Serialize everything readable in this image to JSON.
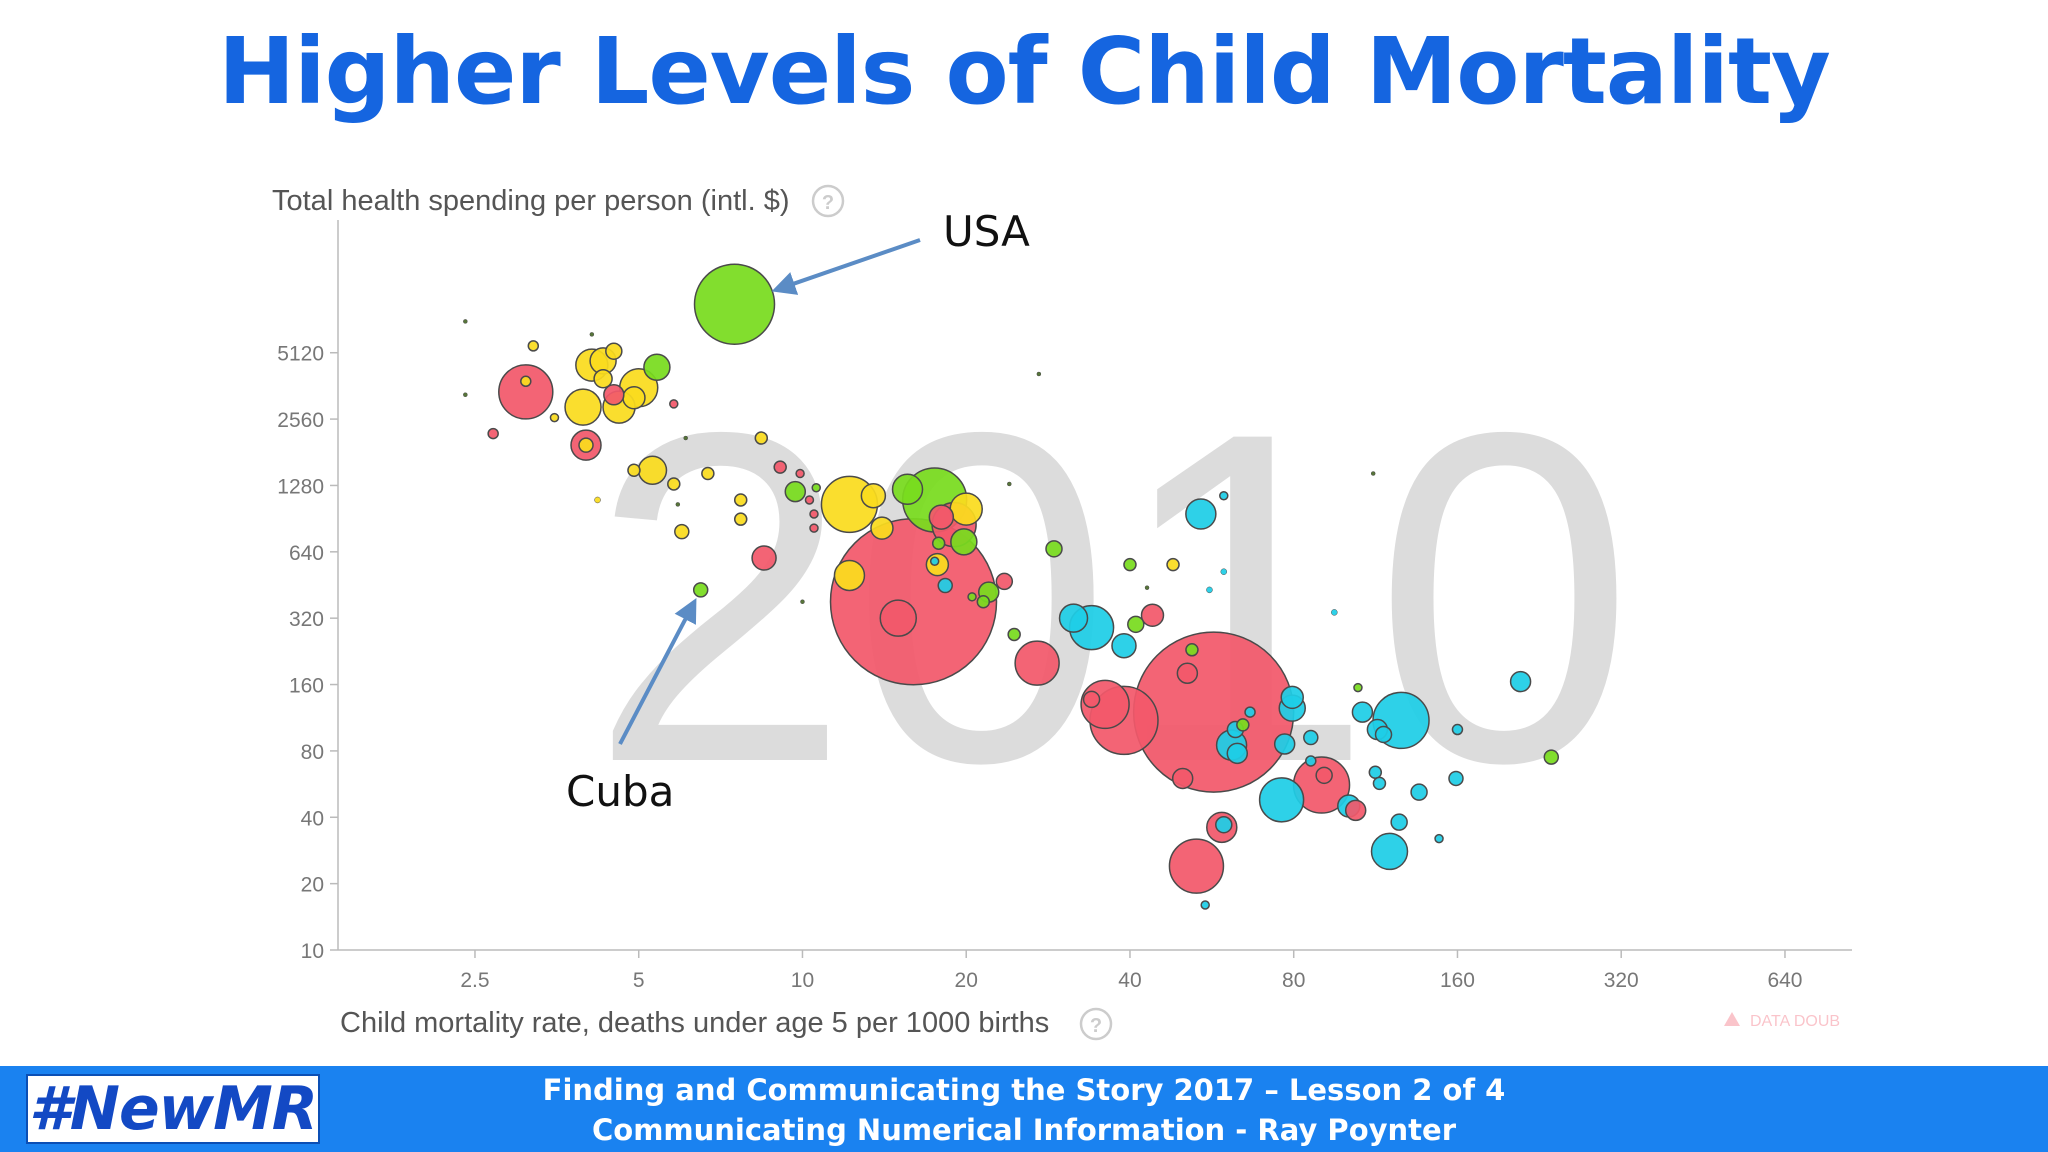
{
  "slide": {
    "title": "Higher Levels of Child Mortality",
    "brand": "#NewMR",
    "footer_line1": "Finding and Communicating the Story 2017 – Lesson 2 of 4",
    "footer_line2": "Communicating Numerical Information - Ray Poynter"
  },
  "colors": {
    "title": "#1565e0",
    "footer": "#1a82f0",
    "red": "#f2586b",
    "yellow": "#fadc1e",
    "green": "#78dc1e",
    "cyan": "#1ecde6",
    "arrow": "#5b8cc5"
  },
  "icons": {
    "help": "question-circle-icon",
    "warning": "warning-triangle-icon"
  },
  "chart_data": {
    "type": "scatter",
    "title": "",
    "year_label": "2010",
    "ylabel": "Total health spending per person (intl. $)",
    "xlabel": "Child mortality rate, deaths under age 5 per 1000 births",
    "x_scale": "log",
    "y_scale": "log",
    "xlim": [
      1.4,
      850
    ],
    "ylim": [
      10,
      20480
    ],
    "x_ticks": [
      "2.5",
      "5",
      "10",
      "20",
      "40",
      "80",
      "160",
      "320",
      "640"
    ],
    "y_ticks": [
      "10",
      "20",
      "40",
      "80",
      "160",
      "320",
      "640",
      "1280",
      "2560",
      "5120"
    ],
    "watermark": "DATA DOUB",
    "annotations": [
      {
        "label": "USA",
        "x": 7.5,
        "y": 8500
      },
      {
        "label": "Cuba",
        "x": 6.5,
        "y": 430
      }
    ],
    "bubbles": [
      {
        "x": 7.5,
        "y": 8500,
        "r": 40,
        "color": "green"
      },
      {
        "x": 6.5,
        "y": 430,
        "r": 7,
        "color": "green"
      },
      {
        "x": 16,
        "y": 380,
        "r": 83,
        "color": "red"
      },
      {
        "x": 57,
        "y": 120,
        "r": 80,
        "color": "red"
      },
      {
        "x": 15,
        "y": 320,
        "r": 18,
        "color": "red"
      },
      {
        "x": 3.1,
        "y": 3400,
        "r": 27,
        "color": "red"
      },
      {
        "x": 4,
        "y": 1950,
        "r": 15,
        "color": "red"
      },
      {
        "x": 4,
        "y": 1950,
        "r": 7,
        "color": "yellow"
      },
      {
        "x": 4.5,
        "y": 3300,
        "r": 10,
        "color": "red"
      },
      {
        "x": 5.8,
        "y": 3000,
        "r": 4,
        "color": "red"
      },
      {
        "x": 2.4,
        "y": 7100,
        "r": 2,
        "color": "darkgreen"
      },
      {
        "x": 2.4,
        "y": 3300,
        "r": 2,
        "color": "darkgreen"
      },
      {
        "x": 2.7,
        "y": 2200,
        "r": 5,
        "color": "red"
      },
      {
        "x": 3.2,
        "y": 5500,
        "r": 5,
        "color": "yellow"
      },
      {
        "x": 3.1,
        "y": 3800,
        "r": 5,
        "color": "yellow"
      },
      {
        "x": 3.5,
        "y": 2600,
        "r": 4,
        "color": "yellow"
      },
      {
        "x": 4.1,
        "y": 4500,
        "r": 16,
        "color": "yellow"
      },
      {
        "x": 4.3,
        "y": 4700,
        "r": 13,
        "color": "yellow"
      },
      {
        "x": 4.5,
        "y": 5200,
        "r": 8,
        "color": "yellow"
      },
      {
        "x": 4.3,
        "y": 3900,
        "r": 9,
        "color": "yellow"
      },
      {
        "x": 3.95,
        "y": 2900,
        "r": 18,
        "color": "yellow"
      },
      {
        "x": 4.6,
        "y": 2900,
        "r": 16,
        "color": "yellow"
      },
      {
        "x": 5,
        "y": 3550,
        "r": 19,
        "color": "yellow"
      },
      {
        "x": 4.9,
        "y": 3200,
        "r": 11,
        "color": "yellow"
      },
      {
        "x": 4.1,
        "y": 6200,
        "r": 2,
        "color": "darkgreen"
      },
      {
        "x": 5.4,
        "y": 4400,
        "r": 13,
        "color": "green"
      },
      {
        "x": 4.2,
        "y": 1100,
        "r": 3,
        "color": "yellow"
      },
      {
        "x": 4.9,
        "y": 1500,
        "r": 6,
        "color": "yellow"
      },
      {
        "x": 5.3,
        "y": 1500,
        "r": 14,
        "color": "yellow"
      },
      {
        "x": 5.8,
        "y": 1300,
        "r": 6,
        "color": "yellow"
      },
      {
        "x": 5.9,
        "y": 1050,
        "r": 2,
        "color": "darkgreen"
      },
      {
        "x": 6.7,
        "y": 1450,
        "r": 6,
        "color": "yellow"
      },
      {
        "x": 6,
        "y": 790,
        "r": 7,
        "color": "yellow"
      },
      {
        "x": 6.1,
        "y": 2100,
        "r": 2,
        "color": "darkgreen"
      },
      {
        "x": 7.7,
        "y": 1100,
        "r": 6,
        "color": "yellow"
      },
      {
        "x": 7.7,
        "y": 900,
        "r": 6,
        "color": "yellow"
      },
      {
        "x": 8.4,
        "y": 2100,
        "r": 6,
        "color": "yellow"
      },
      {
        "x": 8.5,
        "y": 600,
        "r": 12,
        "color": "red"
      },
      {
        "x": 9.1,
        "y": 1550,
        "r": 6,
        "color": "red"
      },
      {
        "x": 9.7,
        "y": 1200,
        "r": 10,
        "color": "green"
      },
      {
        "x": 9.9,
        "y": 1450,
        "r": 4,
        "color": "red"
      },
      {
        "x": 10.3,
        "y": 1100,
        "r": 4,
        "color": "red"
      },
      {
        "x": 10.5,
        "y": 950,
        "r": 4,
        "color": "red"
      },
      {
        "x": 10.5,
        "y": 820,
        "r": 4,
        "color": "red"
      },
      {
        "x": 10.6,
        "y": 1250,
        "r": 4,
        "color": "green"
      },
      {
        "x": 12.2,
        "y": 1050,
        "r": 28,
        "color": "yellow"
      },
      {
        "x": 12.2,
        "y": 500,
        "r": 15,
        "color": "yellow"
      },
      {
        "x": 13.5,
        "y": 1150,
        "r": 12,
        "color": "yellow"
      },
      {
        "x": 14,
        "y": 820,
        "r": 11,
        "color": "yellow"
      },
      {
        "x": 15.6,
        "y": 1230,
        "r": 15,
        "color": "green"
      },
      {
        "x": 17.5,
        "y": 1100,
        "r": 32,
        "color": "green"
      },
      {
        "x": 20,
        "y": 1000,
        "r": 16,
        "color": "yellow"
      },
      {
        "x": 19,
        "y": 850,
        "r": 22,
        "color": "red"
      },
      {
        "x": 18,
        "y": 920,
        "r": 12,
        "color": "red"
      },
      {
        "x": 19.8,
        "y": 710,
        "r": 13,
        "color": "green"
      },
      {
        "x": 17.7,
        "y": 560,
        "r": 11,
        "color": "yellow"
      },
      {
        "x": 17.8,
        "y": 700,
        "r": 6,
        "color": "green"
      },
      {
        "x": 18.3,
        "y": 450,
        "r": 7,
        "color": "cyan"
      },
      {
        "x": 17.5,
        "y": 580,
        "r": 4,
        "color": "cyan"
      },
      {
        "x": 20.5,
        "y": 400,
        "r": 4,
        "color": "green"
      },
      {
        "x": 22,
        "y": 420,
        "r": 10,
        "color": "green"
      },
      {
        "x": 23.5,
        "y": 470,
        "r": 8,
        "color": "red"
      },
      {
        "x": 21.5,
        "y": 380,
        "r": 6,
        "color": "green"
      },
      {
        "x": 24,
        "y": 1300,
        "r": 2,
        "color": "darkgreen"
      },
      {
        "x": 24.5,
        "y": 270,
        "r": 6,
        "color": "green"
      },
      {
        "x": 29,
        "y": 660,
        "r": 8,
        "color": "green"
      },
      {
        "x": 27,
        "y": 200,
        "r": 22,
        "color": "red"
      },
      {
        "x": 31.5,
        "y": 320,
        "r": 14,
        "color": "cyan"
      },
      {
        "x": 34,
        "y": 290,
        "r": 22,
        "color": "cyan"
      },
      {
        "x": 39,
        "y": 240,
        "r": 12,
        "color": "cyan"
      },
      {
        "x": 41,
        "y": 300,
        "r": 8,
        "color": "green"
      },
      {
        "x": 44,
        "y": 330,
        "r": 11,
        "color": "red"
      },
      {
        "x": 40,
        "y": 560,
        "r": 6,
        "color": "green"
      },
      {
        "x": 48,
        "y": 560,
        "r": 6,
        "color": "yellow"
      },
      {
        "x": 36,
        "y": 130,
        "r": 24,
        "color": "red"
      },
      {
        "x": 39,
        "y": 110,
        "r": 34,
        "color": "red"
      },
      {
        "x": 34,
        "y": 137,
        "r": 8,
        "color": "red"
      },
      {
        "x": 52,
        "y": 230,
        "r": 6,
        "color": "green"
      },
      {
        "x": 51,
        "y": 180,
        "r": 10,
        "color": "red"
      },
      {
        "x": 50,
        "y": 60,
        "r": 10,
        "color": "red"
      },
      {
        "x": 53,
        "y": 24,
        "r": 27,
        "color": "red"
      },
      {
        "x": 59,
        "y": 36,
        "r": 15,
        "color": "red"
      },
      {
        "x": 59.5,
        "y": 37,
        "r": 8,
        "color": "cyan"
      },
      {
        "x": 55,
        "y": 16,
        "r": 4,
        "color": "cyan"
      },
      {
        "x": 54,
        "y": 950,
        "r": 15,
        "color": "cyan"
      },
      {
        "x": 59.5,
        "y": 1150,
        "r": 4,
        "color": "cyan"
      },
      {
        "x": 62.5,
        "y": 100,
        "r": 8,
        "color": "cyan"
      },
      {
        "x": 61.5,
        "y": 85,
        "r": 15,
        "color": "cyan"
      },
      {
        "x": 63,
        "y": 78,
        "r": 10,
        "color": "cyan"
      },
      {
        "x": 64.5,
        "y": 105,
        "r": 6,
        "color": "green"
      },
      {
        "x": 66.5,
        "y": 120,
        "r": 5,
        "color": "cyan"
      },
      {
        "x": 76,
        "y": 48,
        "r": 22,
        "color": "cyan"
      },
      {
        "x": 77,
        "y": 86,
        "r": 10,
        "color": "cyan"
      },
      {
        "x": 79.5,
        "y": 125,
        "r": 13,
        "color": "cyan"
      },
      {
        "x": 79.5,
        "y": 140,
        "r": 11,
        "color": "cyan"
      },
      {
        "x": 90,
        "y": 56,
        "r": 28,
        "color": "red"
      },
      {
        "x": 91,
        "y": 62,
        "r": 8,
        "color": "red"
      },
      {
        "x": 86,
        "y": 92,
        "r": 7,
        "color": "cyan"
      },
      {
        "x": 86,
        "y": 72,
        "r": 5,
        "color": "cyan"
      },
      {
        "x": 101,
        "y": 45,
        "r": 11,
        "color": "cyan"
      },
      {
        "x": 104,
        "y": 43,
        "r": 10,
        "color": "red"
      },
      {
        "x": 113,
        "y": 64,
        "r": 6,
        "color": "cyan"
      },
      {
        "x": 115,
        "y": 57,
        "r": 6,
        "color": "cyan"
      },
      {
        "x": 112,
        "y": 1450,
        "r": 2,
        "color": "darkgreen"
      },
      {
        "x": 105,
        "y": 155,
        "r": 4,
        "color": "green"
      },
      {
        "x": 107,
        "y": 120,
        "r": 10,
        "color": "cyan"
      },
      {
        "x": 114,
        "y": 100,
        "r": 10,
        "color": "cyan"
      },
      {
        "x": 117,
        "y": 95,
        "r": 8,
        "color": "cyan"
      },
      {
        "x": 126,
        "y": 110,
        "r": 28,
        "color": "cyan"
      },
      {
        "x": 120,
        "y": 28,
        "r": 18,
        "color": "cyan"
      },
      {
        "x": 125,
        "y": 38,
        "r": 8,
        "color": "cyan"
      },
      {
        "x": 136,
        "y": 52,
        "r": 8,
        "color": "cyan"
      },
      {
        "x": 148,
        "y": 32,
        "r": 4,
        "color": "cyan"
      },
      {
        "x": 160,
        "y": 100,
        "r": 5,
        "color": "cyan"
      },
      {
        "x": 159,
        "y": 60,
        "r": 7,
        "color": "cyan"
      },
      {
        "x": 209,
        "y": 165,
        "r": 10,
        "color": "cyan"
      },
      {
        "x": 238,
        "y": 75,
        "r": 7,
        "color": "green"
      },
      {
        "x": 10,
        "y": 380,
        "r": 2,
        "color": "darkgreen"
      },
      {
        "x": 27.2,
        "y": 4100,
        "r": 2,
        "color": "darkgreen"
      },
      {
        "x": 43,
        "y": 440,
        "r": 2,
        "color": "darkgreen"
      },
      {
        "x": 56,
        "y": 430,
        "r": 3,
        "color": "cyan"
      },
      {
        "x": 59.5,
        "y": 520,
        "r": 3,
        "color": "cyan"
      },
      {
        "x": 95,
        "y": 340,
        "r": 3,
        "color": "cyan"
      }
    ]
  }
}
